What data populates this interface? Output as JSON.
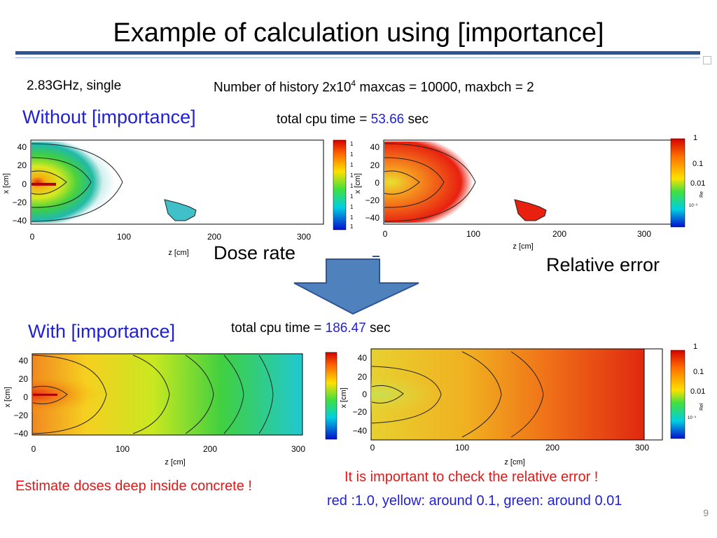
{
  "title": "Example of calculation using [importance]",
  "config": {
    "machine": "2.83GHz, single",
    "history_prefix": "Number of history  2x10",
    "history_exp": "4",
    "history_suffix": "  maxcas = 10000, maxbch = 2"
  },
  "without": {
    "label": "Without [importance]",
    "cpu_prefix": "total cpu time = ",
    "cpu_value": "53.66",
    "cpu_unit": " sec"
  },
  "with": {
    "label": "With [importance]",
    "cpu_prefix": "total cpu time = ",
    "cpu_value": "186.47",
    "cpu_unit": " sec"
  },
  "labels": {
    "dose_rate": "Dose rate",
    "relative_error": "Relative error"
  },
  "plot": {
    "xlabel": "z [cm]",
    "ylabel": "x [cm]",
    "xticks": [
      "0",
      "100",
      "200",
      "300"
    ],
    "yticks": [
      "40",
      "20",
      "0",
      "−20",
      "−40"
    ],
    "err_ticks": [
      "1",
      "0.1",
      "0.01",
      "10⁻³"
    ],
    "err_cb_label": "Re",
    "err_cb_label2": "Rel",
    "dose_cb_ticks": [
      "1",
      "1",
      "1",
      "1",
      "1",
      "1",
      "1",
      "1",
      "1"
    ]
  },
  "notes": {
    "left": "Estimate doses deep inside concrete !",
    "right1": "It is important to check the relative error !",
    "right2": "red :1.0, yellow: around 0.1, green: around 0.01"
  },
  "page_number": "9",
  "colors": {
    "accent_rule": "#2f5597",
    "arrow": "#4f81bd",
    "blue_text": "#1f1fd8",
    "red_text": "#e01818"
  }
}
